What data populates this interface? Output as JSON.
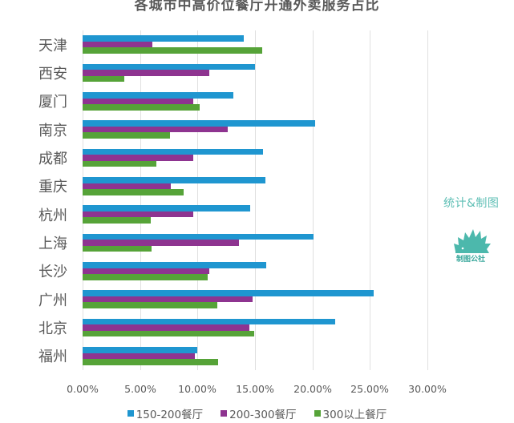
{
  "chart_data": {
    "type": "bar",
    "orientation": "horizontal",
    "title": "各城市中高价位餐厅开通外卖服务占比",
    "xlabel": "",
    "ylabel": "",
    "xlim": [
      0,
      30
    ],
    "x_ticks": [
      "0.00%",
      "5.00%",
      "10.00%",
      "15.00%",
      "20.00%",
      "25.00%",
      "30.00%"
    ],
    "grid": true,
    "legend_position": "bottom",
    "categories": [
      "天津",
      "西安",
      "厦门",
      "南京",
      "成都",
      "重庆",
      "杭州",
      "上海",
      "长沙",
      "广州",
      "北京",
      "福州"
    ],
    "series": [
      {
        "name": "150-200餐厅",
        "color": "#1f96d0",
        "values": [
          14.0,
          15.0,
          13.1,
          20.2,
          15.7,
          15.9,
          14.6,
          20.1,
          16.0,
          25.3,
          22.0,
          10.0
        ]
      },
      {
        "name": "200-300餐厅",
        "color": "#8e3490",
        "values": [
          6.1,
          11.0,
          9.6,
          12.6,
          9.6,
          7.7,
          9.6,
          13.6,
          11.0,
          14.8,
          14.5,
          9.8
        ]
      },
      {
        "name": "300以上餐厅",
        "color": "#56a338",
        "values": [
          15.6,
          3.6,
          10.2,
          7.6,
          6.4,
          8.8,
          5.9,
          6.0,
          10.9,
          11.7,
          14.9,
          11.8
        ]
      }
    ],
    "unit": "%"
  },
  "watermark": {
    "text": "统计&制图",
    "logo_label": "制图公社",
    "logo_icon": "hedgehog-icon"
  }
}
